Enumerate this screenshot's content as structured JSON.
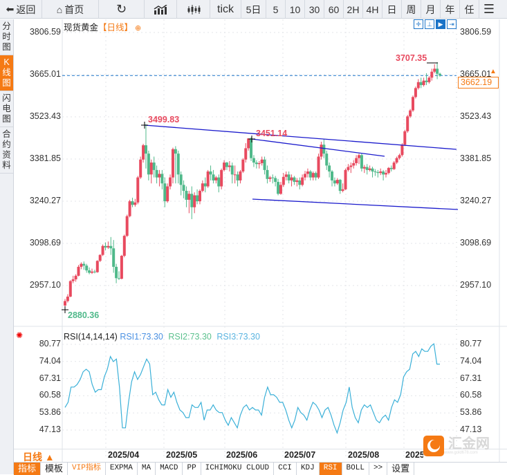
{
  "toolbar": {
    "back": "返回",
    "home": "首页",
    "refresh_icon": "refresh-icon",
    "indicator_icon": "chart-indicator-icon",
    "candle_icon": "candlestick-icon",
    "periods": [
      "tick",
      "5日",
      "5",
      "10",
      "30",
      "60",
      "2H",
      "4H",
      "日",
      "周",
      "月",
      "年",
      "任"
    ],
    "menu_icon": "hamburger-menu-icon"
  },
  "side_tabs": [
    {
      "label": "分时图",
      "active": false
    },
    {
      "label": "K线图",
      "active": true
    },
    {
      "label": "闪电图",
      "active": false
    },
    {
      "label": "合约资料",
      "active": false
    }
  ],
  "chart": {
    "title": "现货黄金",
    "period": "【日线】",
    "price_axis": [
      "3806.59",
      "3665.01",
      "3523.43",
      "3381.85",
      "3240.27",
      "3098.69",
      "2957.10"
    ],
    "current_price": "3662.19",
    "high_label": "3707.35",
    "low_label": "2880.36",
    "annotations": [
      "3499.83",
      "3451.14"
    ],
    "controls": [
      "crosshair-icon",
      "range-icon",
      "play-icon",
      "scroll-end-icon"
    ]
  },
  "rsi": {
    "title": "RSI(14,14,14)",
    "rsi1": "RSI1:73.30",
    "rsi2": "RSI2:73.30",
    "rsi3": "RSI3:73.30",
    "axis": [
      "80.77",
      "74.04",
      "67.31",
      "60.58",
      "53.86",
      "47.13"
    ]
  },
  "dates": [
    "2025/04",
    "2025/05",
    "2025/06",
    "2025/07",
    "2025/08",
    "2025/09"
  ],
  "period_selector": "日线 ▲",
  "bottom_tabs": [
    "指标",
    "模板",
    "VIP指标",
    "EXPMA",
    "MA",
    "MACD",
    "PP",
    "ICHIMOKU CLOUD",
    "CCI",
    "KDJ",
    "RSI",
    "BOLL",
    ">>",
    "设置"
  ],
  "watermark": {
    "name": "汇金网",
    "url": "www.gold678.com"
  },
  "colors": {
    "up": "#e84a5f",
    "down": "#4fb98a",
    "trend": "#1a1acc",
    "rsi": "#3ab0d8",
    "accent": "#f57a14",
    "current_line": "#1a73c8"
  },
  "candles": [
    [
      2890,
      2905,
      2878,
      2912
    ],
    [
      2905,
      2920,
      2900,
      2928
    ],
    [
      2920,
      2972,
      2918,
      2975
    ],
    [
      2972,
      2978,
      2965,
      2990
    ],
    [
      2978,
      2990,
      2970,
      2995
    ],
    [
      2990,
      3020,
      2988,
      3026
    ],
    [
      3020,
      3030,
      3012,
      3035
    ],
    [
      3030,
      3024,
      3010,
      3038
    ],
    [
      3024,
      3008,
      3000,
      3030
    ],
    [
      3008,
      3000,
      2995,
      3018
    ],
    [
      3000,
      3004,
      2996,
      3014
    ],
    [
      3004,
      3002,
      2998,
      3010
    ],
    [
      3002,
      3040,
      3000,
      3042
    ],
    [
      3040,
      3060,
      3036,
      3062
    ],
    [
      3060,
      3090,
      3056,
      3095
    ],
    [
      3090,
      3085,
      3075,
      3102
    ],
    [
      3085,
      3090,
      3080,
      3105
    ],
    [
      3090,
      3082,
      3060,
      3120
    ],
    [
      3082,
      3020,
      3000,
      3110
    ],
    [
      3020,
      2982,
      2965,
      3030
    ],
    [
      2982,
      2980,
      2976,
      3005
    ],
    [
      2980,
      3057,
      2978,
      3060
    ],
    [
      3057,
      3124,
      3052,
      3128
    ],
    [
      3124,
      3190,
      3120,
      3195
    ],
    [
      3190,
      3240,
      3186,
      3245
    ],
    [
      3240,
      3228,
      3220,
      3252
    ],
    [
      3228,
      3236,
      3222,
      3248
    ],
    [
      3236,
      3320,
      3230,
      3325
    ],
    [
      3320,
      3380,
      3315,
      3390
    ],
    [
      3380,
      3428,
      3370,
      3433
    ],
    [
      3428,
      3400,
      3350,
      3499
    ],
    [
      3400,
      3330,
      3310,
      3410
    ],
    [
      3330,
      3370,
      3300,
      3380
    ],
    [
      3370,
      3345,
      3320,
      3390
    ],
    [
      3345,
      3320,
      3300,
      3360
    ],
    [
      3320,
      3332,
      3290,
      3345
    ],
    [
      3332,
      3300,
      3280,
      3345
    ],
    [
      3300,
      3240,
      3220,
      3320
    ],
    [
      3240,
      3290,
      3235,
      3300
    ],
    [
      3290,
      3320,
      3280,
      3330
    ],
    [
      3320,
      3415,
      3300,
      3420
    ],
    [
      3415,
      3400,
      3300,
      3425
    ],
    [
      3400,
      3330,
      3300,
      3410
    ],
    [
      3330,
      3295,
      3260,
      3340
    ],
    [
      3295,
      3275,
      3250,
      3310
    ],
    [
      3275,
      3245,
      3220,
      3290
    ],
    [
      3245,
      3265,
      3200,
      3275
    ],
    [
      3265,
      3220,
      3180,
      3290
    ],
    [
      3220,
      3260,
      3200,
      3270
    ],
    [
      3260,
      3240,
      3230,
      3280
    ],
    [
      3240,
      3275,
      3230,
      3280
    ],
    [
      3275,
      3300,
      3270,
      3310
    ],
    [
      3300,
      3290,
      3270,
      3320
    ],
    [
      3290,
      3340,
      3285,
      3345
    ],
    [
      3340,
      3330,
      3310,
      3360
    ],
    [
      3330,
      3310,
      3300,
      3345
    ],
    [
      3310,
      3320,
      3300,
      3325
    ],
    [
      3320,
      3290,
      3270,
      3330
    ],
    [
      3290,
      3345,
      3280,
      3350
    ],
    [
      3345,
      3370,
      3340,
      3378
    ],
    [
      3370,
      3355,
      3345,
      3372
    ],
    [
      3355,
      3360,
      3340,
      3375
    ],
    [
      3360,
      3330,
      3300,
      3370
    ],
    [
      3330,
      3330,
      3300,
      3360
    ],
    [
      3330,
      3310,
      3290,
      3340
    ],
    [
      3310,
      3340,
      3300,
      3345
    ],
    [
      3340,
      3380,
      3335,
      3385
    ],
    [
      3380,
      3418,
      3370,
      3435
    ],
    [
      3418,
      3451,
      3410,
      3451
    ],
    [
      3451,
      3385,
      3375,
      3455
    ],
    [
      3385,
      3370,
      3355,
      3395
    ],
    [
      3370,
      3365,
      3350,
      3378
    ],
    [
      3365,
      3368,
      3350,
      3375
    ],
    [
      3368,
      3380,
      3360,
      3390
    ],
    [
      3380,
      3345,
      3330,
      3390
    ],
    [
      3345,
      3315,
      3300,
      3360
    ],
    [
      3315,
      3320,
      3305,
      3325
    ],
    [
      3320,
      3318,
      3300,
      3330
    ],
    [
      3318,
      3305,
      3290,
      3325
    ],
    [
      3305,
      3265,
      3260,
      3315
    ],
    [
      3265,
      3295,
      3262,
      3305
    ],
    [
      3295,
      3322,
      3288,
      3335
    ],
    [
      3322,
      3330,
      3310,
      3340
    ],
    [
      3330,
      3310,
      3300,
      3340
    ],
    [
      3310,
      3320,
      3290,
      3330
    ],
    [
      3320,
      3305,
      3295,
      3325
    ],
    [
      3305,
      3310,
      3290,
      3318
    ],
    [
      3310,
      3295,
      3280,
      3320
    ],
    [
      3295,
      3320,
      3290,
      3330
    ],
    [
      3320,
      3332,
      3310,
      3342
    ],
    [
      3332,
      3340,
      3320,
      3350
    ],
    [
      3340,
      3320,
      3310,
      3345
    ],
    [
      3320,
      3335,
      3310,
      3340
    ],
    [
      3335,
      3320,
      3310,
      3340
    ],
    [
      3320,
      3390,
      3315,
      3400
    ],
    [
      3390,
      3430,
      3380,
      3440
    ],
    [
      3430,
      3400,
      3385,
      3448
    ],
    [
      3400,
      3360,
      3345,
      3410
    ],
    [
      3360,
      3340,
      3320,
      3370
    ],
    [
      3340,
      3310,
      3290,
      3345
    ],
    [
      3310,
      3300,
      3290,
      3320
    ],
    [
      3300,
      3312,
      3295,
      3318
    ],
    [
      3312,
      3275,
      3265,
      3315
    ],
    [
      3275,
      3280,
      3270,
      3300
    ],
    [
      3280,
      3345,
      3278,
      3350
    ],
    [
      3345,
      3355,
      3340,
      3365
    ],
    [
      3355,
      3360,
      3335,
      3370
    ],
    [
      3360,
      3368,
      3350,
      3378
    ],
    [
      3368,
      3385,
      3360,
      3395
    ],
    [
      3385,
      3395,
      3365,
      3400
    ],
    [
      3395,
      3350,
      3340,
      3400
    ],
    [
      3350,
      3355,
      3335,
      3362
    ],
    [
      3355,
      3345,
      3330,
      3365
    ],
    [
      3345,
      3350,
      3340,
      3360
    ],
    [
      3350,
      3340,
      3320,
      3356
    ],
    [
      3340,
      3338,
      3325,
      3348
    ],
    [
      3338,
      3335,
      3320,
      3345
    ],
    [
      3335,
      3340,
      3328,
      3350
    ],
    [
      3340,
      3330,
      3310,
      3345
    ],
    [
      3330,
      3335,
      3320,
      3345
    ],
    [
      3335,
      3352,
      3330,
      3355
    ],
    [
      3352,
      3348,
      3340,
      3360
    ],
    [
      3348,
      3370,
      3345,
      3375
    ],
    [
      3370,
      3385,
      3365,
      3390
    ],
    [
      3385,
      3395,
      3380,
      3400
    ],
    [
      3395,
      3430,
      3390,
      3435
    ],
    [
      3430,
      3475,
      3425,
      3480
    ],
    [
      3475,
      3525,
      3470,
      3530
    ],
    [
      3525,
      3545,
      3520,
      3550
    ],
    [
      3545,
      3590,
      3540,
      3595
    ],
    [
      3590,
      3620,
      3585,
      3625
    ],
    [
      3620,
      3640,
      3615,
      3650
    ],
    [
      3640,
      3630,
      3620,
      3655
    ],
    [
      3630,
      3645,
      3625,
      3655
    ],
    [
      3645,
      3640,
      3630,
      3670
    ],
    [
      3640,
      3655,
      3635,
      3660
    ],
    [
      3655,
      3675,
      3645,
      3685
    ],
    [
      3675,
      3685,
      3670,
      3700
    ],
    [
      3685,
      3668,
      3650,
      3707
    ],
    [
      3668,
      3662,
      3658,
      3672
    ]
  ],
  "rsi_values": [
    56,
    58,
    64,
    64,
    65,
    67,
    70,
    71,
    70,
    65,
    62,
    63,
    63,
    68,
    71,
    76,
    74,
    75,
    64,
    48,
    48,
    58,
    66,
    70,
    67,
    69,
    72,
    75,
    73,
    61,
    62,
    59,
    57,
    57,
    63,
    60,
    62,
    58,
    55,
    54,
    52,
    52,
    57,
    56,
    56,
    58,
    51,
    55,
    55,
    57,
    55,
    54,
    54,
    51,
    49,
    52,
    50,
    48,
    53,
    56,
    57,
    55,
    56,
    55,
    55,
    53,
    60,
    64,
    61,
    61,
    60,
    58,
    58,
    55,
    51,
    48,
    51,
    56,
    54,
    53,
    51,
    55,
    58,
    57,
    55,
    52,
    55,
    56,
    53,
    49,
    46,
    50,
    55,
    58,
    64,
    56,
    52,
    50,
    55,
    57,
    56,
    57,
    54,
    51,
    50,
    52,
    53,
    51,
    56,
    59,
    58,
    61,
    68,
    70,
    71,
    77,
    78,
    76,
    79,
    78,
    78,
    80,
    81,
    73,
    73
  ]
}
